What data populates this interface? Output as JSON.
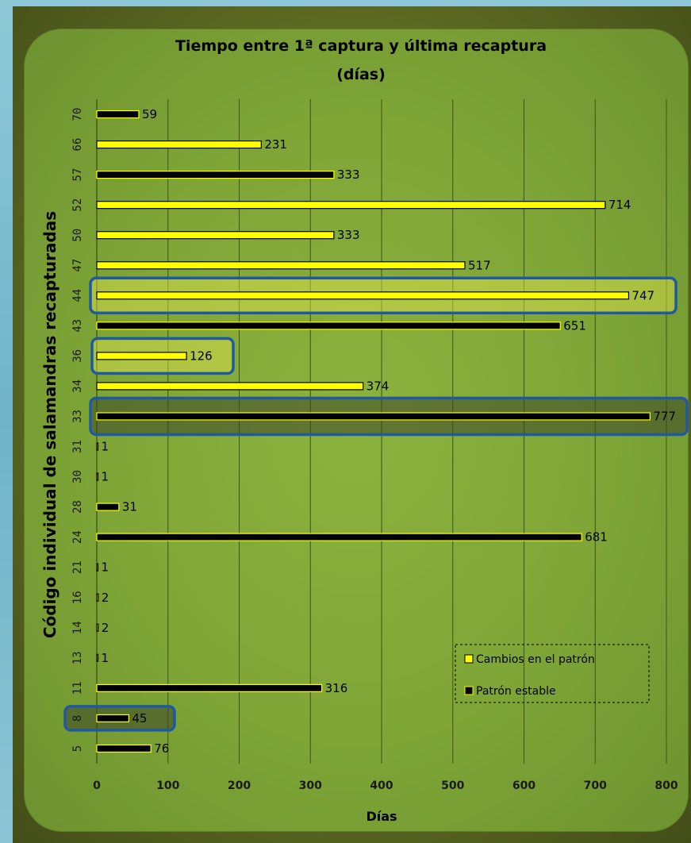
{
  "chart_data": {
    "type": "bar",
    "orientation": "horizontal",
    "title": "Tiempo entre 1ª captura y última recaptura",
    "subtitle": "(días)",
    "xlabel": "Días",
    "ylabel": "Código individual de salamandras recapturadas",
    "xlim": [
      0,
      800
    ],
    "xticks": [
      0,
      100,
      200,
      300,
      400,
      500,
      600,
      700,
      800
    ],
    "grid": true,
    "legend_position": "bottom-right",
    "series": [
      {
        "name": "Cambios en el patrón",
        "color": "#ffff00"
      },
      {
        "name": "Patrón estable",
        "color": "#000000"
      }
    ],
    "categories": [
      "5",
      "8",
      "11",
      "13",
      "14",
      "16",
      "21",
      "24",
      "28",
      "30",
      "31",
      "33",
      "34",
      "36",
      "43",
      "44",
      "47",
      "50",
      "52",
      "57",
      "66",
      "70"
    ],
    "values": [
      76,
      45,
      316,
      1,
      2,
      2,
      1,
      681,
      31,
      1,
      1,
      777,
      374,
      126,
      651,
      747,
      517,
      333,
      714,
      333,
      231,
      59
    ],
    "series_index": [
      1,
      1,
      1,
      0,
      0,
      0,
      0,
      1,
      1,
      0,
      0,
      1,
      0,
      0,
      1,
      0,
      0,
      0,
      0,
      1,
      0,
      1
    ],
    "highlighted": [
      "8",
      "33",
      "36",
      "44"
    ],
    "colors": {
      "cambios": "#ffff00",
      "estable": "#000000",
      "highlight_border": "#1f5a9e",
      "panel": "#86ab3a",
      "grid": "#3f5217"
    }
  }
}
